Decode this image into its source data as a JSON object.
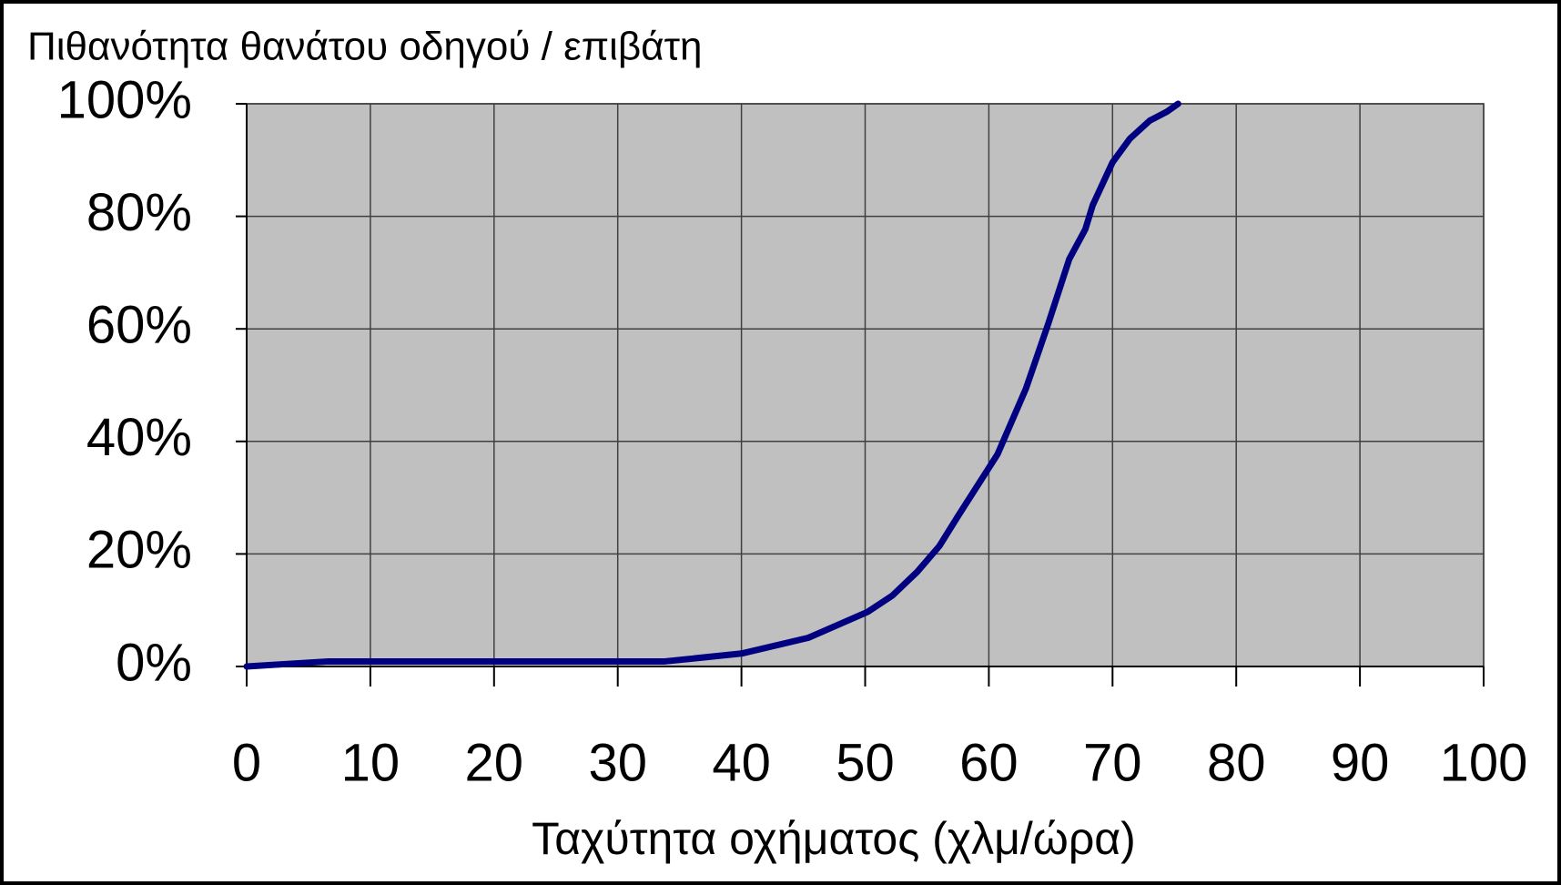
{
  "chart_data": {
    "type": "line",
    "title": "Πιθανότητα θανάτου οδηγού / επιβάτη",
    "x_label": "Ταχύτητα οχήματος (χλμ/ώρα)",
    "x": [
      0,
      6.6,
      33.8,
      40,
      45.4,
      50.2,
      52.2,
      54.2,
      56,
      57.5,
      60.7,
      63,
      64.8,
      66.5,
      67.8,
      68.4,
      70,
      71.4,
      73,
      74.4,
      75.3
    ],
    "series": [
      {
        "name": "Πιθανότητα",
        "color": "#000080",
        "values": [
          0,
          0.9,
          0.9,
          2.3,
          5.1,
          9.7,
          12.6,
          16.8,
          21.4,
          26.7,
          37.7,
          49.4,
          60.9,
          72.4,
          77.7,
          82,
          89.6,
          93.8,
          97,
          98.6,
          100
        ]
      }
    ],
    "xlim": [
      0,
      100
    ],
    "xticks": [
      0,
      10,
      20,
      30,
      40,
      50,
      60,
      70,
      80,
      90,
      100
    ],
    "ylim": [
      0,
      100
    ],
    "yticks": [
      {
        "value": 0,
        "label": "0%"
      },
      {
        "value": 20,
        "label": "20%"
      },
      {
        "value": 40,
        "label": "40%"
      },
      {
        "value": 60,
        "label": "60%"
      },
      {
        "value": 80,
        "label": "80%"
      },
      {
        "value": 100,
        "label": "100%"
      }
    ],
    "grid": true,
    "plot_background": "#c0c0c0"
  }
}
